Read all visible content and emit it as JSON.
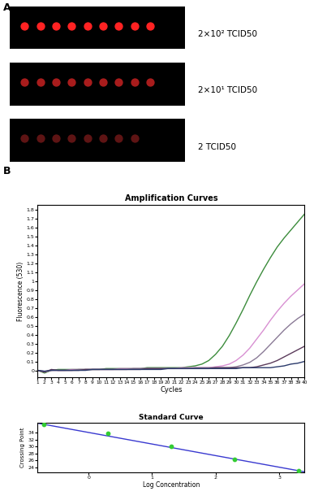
{
  "panel_labels": [
    "A",
    "B"
  ],
  "strips": [
    {
      "label": "2×10² TCID50",
      "spots": 9,
      "color": "#ff2222"
    },
    {
      "label": "2×10¹ TCID50",
      "spots": 9,
      "color": "#a81c1c"
    },
    {
      "label": "2 TCID50",
      "spots": 8,
      "color": "#5e1414"
    }
  ],
  "chart_data": [
    {
      "type": "line",
      "title": "Amplification Curves",
      "x_label": "Cycles",
      "y_label": "Fluorescence (530)",
      "x": [
        1,
        2,
        3,
        4,
        5,
        6,
        7,
        8,
        9,
        10,
        11,
        12,
        13,
        14,
        15,
        16,
        17,
        18,
        19,
        20,
        21,
        22,
        23,
        24,
        25,
        26,
        27,
        28,
        29,
        30,
        31,
        32,
        33,
        34,
        35,
        36,
        37,
        38,
        39,
        40
      ],
      "xlim": [
        1,
        40
      ],
      "xticks": [
        1,
        2,
        3,
        4,
        5,
        6,
        7,
        8,
        9,
        10,
        11,
        12,
        13,
        14,
        15,
        16,
        17,
        18,
        19,
        20,
        21,
        22,
        23,
        24,
        25,
        26,
        27,
        28,
        29,
        30,
        31,
        32,
        33,
        34,
        35,
        36,
        37,
        38,
        39,
        40
      ],
      "ylim": [
        -0.08,
        1.85
      ],
      "yticks": [
        0,
        0.1,
        0.2,
        0.3,
        0.4,
        0.5,
        0.6,
        0.7,
        0.8,
        0.9,
        1,
        1.1,
        1.2,
        1.3,
        1.4,
        1.5,
        1.6,
        1.7,
        1.8
      ],
      "series": [
        {
          "color": "#3c8c3c",
          "values": [
            0.0,
            -0.03,
            0.0,
            0.01,
            0.01,
            0.01,
            0.01,
            0.01,
            0.01,
            0.01,
            0.02,
            0.02,
            0.02,
            0.02,
            0.02,
            0.02,
            0.03,
            0.03,
            0.03,
            0.03,
            0.03,
            0.03,
            0.04,
            0.05,
            0.07,
            0.11,
            0.18,
            0.27,
            0.39,
            0.53,
            0.68,
            0.84,
            0.99,
            1.13,
            1.26,
            1.38,
            1.48,
            1.57,
            1.66,
            1.75
          ]
        },
        {
          "color": "#d890d2",
          "values": [
            0.0,
            -0.02,
            0.0,
            0.0,
            0.0,
            0.01,
            0.01,
            0.01,
            0.01,
            0.01,
            0.01,
            0.01,
            0.02,
            0.02,
            0.02,
            0.02,
            0.02,
            0.02,
            0.02,
            0.02,
            0.02,
            0.03,
            0.03,
            0.03,
            0.03,
            0.03,
            0.04,
            0.05,
            0.07,
            0.11,
            0.17,
            0.25,
            0.35,
            0.45,
            0.56,
            0.66,
            0.75,
            0.83,
            0.9,
            0.97
          ]
        },
        {
          "color": "#8a7a96",
          "values": [
            0.0,
            -0.01,
            0.0,
            0.0,
            0.0,
            0.0,
            0.01,
            0.01,
            0.01,
            0.01,
            0.01,
            0.01,
            0.01,
            0.01,
            0.02,
            0.02,
            0.02,
            0.02,
            0.02,
            0.02,
            0.02,
            0.02,
            0.02,
            0.03,
            0.03,
            0.03,
            0.03,
            0.03,
            0.03,
            0.04,
            0.06,
            0.09,
            0.14,
            0.21,
            0.29,
            0.37,
            0.45,
            0.52,
            0.58,
            0.63
          ]
        },
        {
          "color": "#5b3b5b",
          "values": [
            0.0,
            -0.02,
            0.01,
            0.0,
            0.0,
            0.0,
            0.0,
            0.01,
            0.01,
            0.01,
            0.01,
            0.01,
            0.01,
            0.01,
            0.01,
            0.01,
            0.02,
            0.02,
            0.02,
            0.02,
            0.02,
            0.02,
            0.02,
            0.02,
            0.02,
            0.02,
            0.03,
            0.03,
            0.03,
            0.03,
            0.03,
            0.03,
            0.04,
            0.06,
            0.08,
            0.11,
            0.15,
            0.19,
            0.23,
            0.27
          ]
        },
        {
          "color": "#2b3a6b",
          "values": [
            0.0,
            -0.01,
            0.0,
            0.0,
            0.0,
            0.0,
            0.0,
            0.0,
            0.01,
            0.01,
            0.01,
            0.01,
            0.01,
            0.01,
            0.01,
            0.01,
            0.01,
            0.01,
            0.01,
            0.02,
            0.02,
            0.02,
            0.02,
            0.02,
            0.02,
            0.02,
            0.02,
            0.02,
            0.02,
            0.02,
            0.03,
            0.03,
            0.03,
            0.03,
            0.03,
            0.04,
            0.05,
            0.07,
            0.08,
            0.1
          ]
        }
      ]
    },
    {
      "type": "scatter",
      "title": "Standard Curve",
      "x_label": "Log Concentration",
      "y_label": "Crossing Point",
      "xlim": [
        -0.8,
        3.4
      ],
      "xticks": [
        0,
        1,
        2,
        3
      ],
      "ylim": [
        22.5,
        37
      ],
      "yticks": [
        24,
        26,
        28,
        30,
        32,
        34
      ],
      "series": [
        {
          "type": "line",
          "color": "#3a3ad0",
          "x": [
            -0.8,
            3.4
          ],
          "values": [
            36.8,
            22.7
          ]
        },
        {
          "type": "scatter",
          "color": "#33cc33",
          "marker": "o",
          "x": [
            -0.7,
            0.3,
            1.3,
            2.3,
            3.3
          ],
          "values": [
            36.5,
            33.8,
            30.2,
            26.3,
            22.9
          ]
        }
      ]
    }
  ]
}
